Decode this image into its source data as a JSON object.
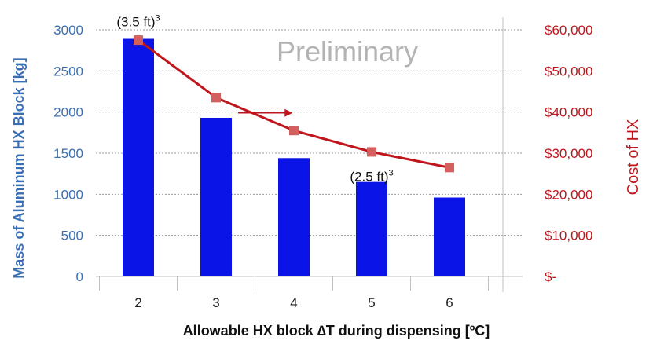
{
  "chart_data": {
    "type": "bar",
    "categories": [
      "2",
      "3",
      "4",
      "5",
      "6"
    ],
    "series": [
      {
        "axis": "left",
        "type": "bar",
        "color": "#0a14e6",
        "values": [
          2890,
          1930,
          1440,
          1150,
          960
        ]
      },
      {
        "axis": "right",
        "type": "line",
        "color": "#c0151b",
        "marker_color": "#d35f5f",
        "values": [
          57500,
          43500,
          35500,
          30300,
          26500
        ]
      }
    ],
    "xlabel": "Allowable HX block ∆T during dispensing [ºC]",
    "ylabel": "Mass of Aluminum HX Block [kg]",
    "y2label": "Cost of HX",
    "ylim": [
      0,
      3000
    ],
    "y2lim": [
      0,
      60000
    ],
    "yticks": [
      "0",
      "500",
      "1000",
      "1500",
      "2000",
      "2500",
      "3000"
    ],
    "y2ticks": [
      "$-",
      "$10,000",
      "$20,000",
      "$30,000",
      "$40,000",
      "$50,000",
      "$60,000"
    ],
    "watermark": "Preliminary",
    "annotations": [
      {
        "text": "(3.5 ft)",
        "sup": "3",
        "category": "2",
        "y": 3100
      },
      {
        "text": "(2.5 ft)",
        "sup": "3",
        "category": "5",
        "y": 1220
      }
    ],
    "arrow": {
      "direction": "right",
      "from_category": 3.0,
      "to_category": 3.7,
      "y": 1990
    },
    "grid": true
  }
}
